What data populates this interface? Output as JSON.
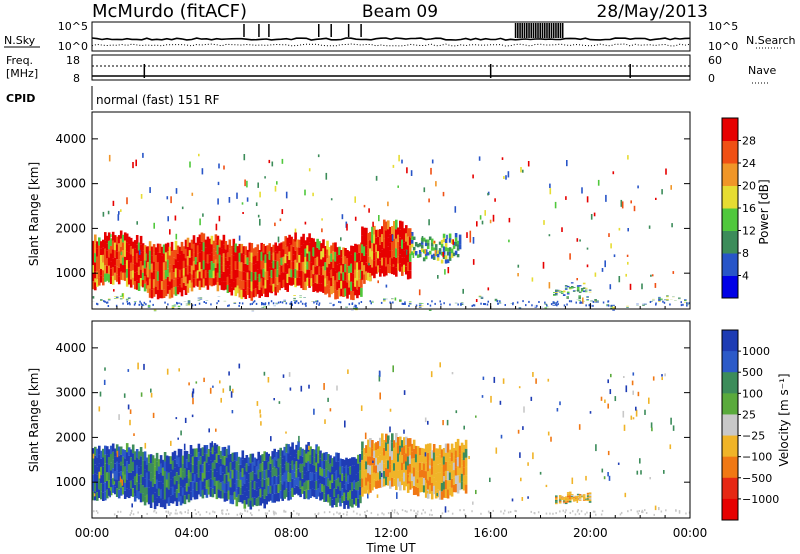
{
  "header": {
    "station": "McMurdo (fitACF)",
    "beam": "Beam 09",
    "date": "28/May/2013"
  },
  "noise_panel": {
    "left_label": "N.Sky",
    "right_label": "N.Search",
    "ticks_left": [
      "10^5",
      "10^0"
    ],
    "ticks_right": [
      "10^5",
      "10^0"
    ]
  },
  "freq_panel": {
    "left_label_1": "Freq.",
    "left_label_2": "[MHz]",
    "right_label": "Nave",
    "ticks_left": [
      "18",
      "8"
    ],
    "ticks_right": [
      "60",
      "0"
    ]
  },
  "cpid": {
    "label": "CPID",
    "value": "normal (fast) 151 RF"
  },
  "chart_data": [
    {
      "type": "heatmap",
      "panel": "power",
      "ylabel": "Slant Range [km]",
      "yticks": [
        1000,
        2000,
        3000,
        4000
      ],
      "ylim": [
        200,
        4600
      ],
      "xlim_hours": [
        0,
        24
      ],
      "colorbar": {
        "label": "Power [dB]",
        "ticks": [
          4,
          8,
          12,
          16,
          20,
          24,
          28
        ],
        "range": [
          0,
          32
        ],
        "colors": [
          "#0000e6",
          "#2855c8",
          "#3c8c5a",
          "#50c83c",
          "#e6dc32",
          "#f09628",
          "#f05014",
          "#e60000"
        ]
      },
      "echo_regions": [
        {
          "t0": 0.0,
          "t1": 2.2,
          "r0": 600,
          "r1": 1850,
          "level": "high"
        },
        {
          "t0": 2.2,
          "t1": 10.8,
          "r0": 500,
          "r1": 1800,
          "level": "high"
        },
        {
          "t0": 10.8,
          "t1": 12.8,
          "r0": 800,
          "r1": 2100,
          "level": "high"
        },
        {
          "t0": 12.8,
          "t1": 14.8,
          "r0": 1300,
          "r1": 2000,
          "level": "low"
        },
        {
          "t0": 18.5,
          "t1": 20.0,
          "r0": 400,
          "r1": 700,
          "level": "low"
        },
        {
          "t0": 0.0,
          "t1": 24.0,
          "r0": 250,
          "r1": 400,
          "level": "low"
        }
      ]
    },
    {
      "type": "heatmap",
      "panel": "velocity",
      "ylabel": "Slant Range [km]",
      "yticks": [
        1000,
        2000,
        3000,
        4000
      ],
      "ylim": [
        200,
        4600
      ],
      "xlim_hours": [
        0,
        24
      ],
      "xticks": [
        "00:00",
        "04:00",
        "08:00",
        "12:00",
        "16:00",
        "20:00",
        "00:00"
      ],
      "xlabel": "Time UT",
      "colorbar": {
        "label": "Velocity [m s⁻¹]",
        "ticks": [
          "1000",
          "500",
          "100",
          "25",
          "−25",
          "−100",
          "−500",
          "−1000"
        ],
        "colors": [
          "#1e3cb4",
          "#2c5ac8",
          "#3c8c5a",
          "#5aaa3c",
          "#c8c8c8",
          "#f0b428",
          "#f07814",
          "#e62814",
          "#e60000"
        ]
      },
      "echo_regions": [
        {
          "t0": 0.0,
          "t1": 10.8,
          "r0": 500,
          "r1": 1800,
          "level": "towards"
        },
        {
          "t0": 10.8,
          "t1": 15.0,
          "r0": 700,
          "r1": 2000,
          "level": "away"
        },
        {
          "t0": 18.5,
          "t1": 20.0,
          "r0": 400,
          "r1": 700,
          "level": "away"
        }
      ]
    }
  ]
}
